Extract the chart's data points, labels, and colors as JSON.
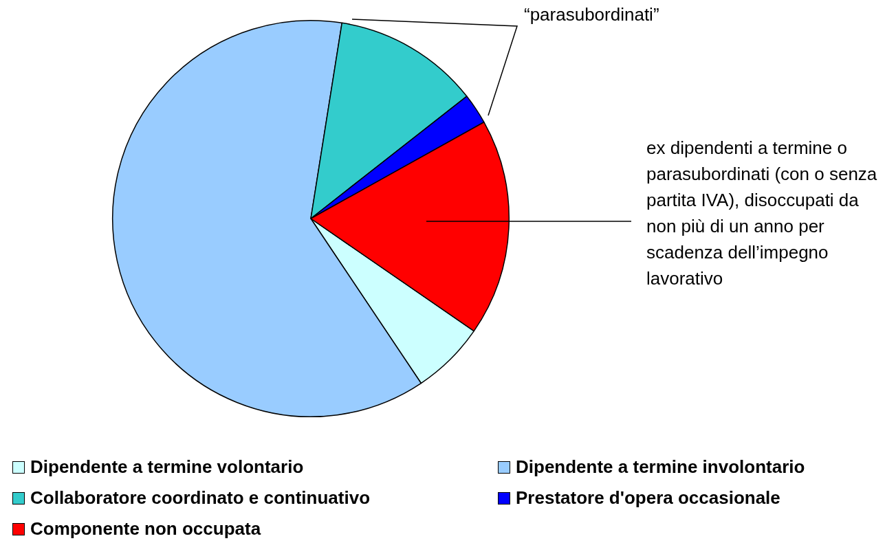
{
  "chart_data": {
    "type": "pie",
    "categories": [
      "Dipendente a termine volontario",
      "Dipendente a termine involontario",
      "Collaboratore coordinato e continuativo",
      "Prestatore d'opera occasionale",
      "Componente non occupata"
    ],
    "values": [
      6.0,
      61.9,
      11.9,
      2.5,
      17.7
    ],
    "colors": [
      "#ccffff",
      "#99ccff",
      "#33cccc",
      "#0000ff",
      "#ff0000"
    ],
    "legend": "bottom",
    "annotations": [
      "“parasubordinati”",
      "ex dipendenti a termine o parasubordinati (con o senza partita IVA), disoccupati da non più di un anno per scadenza dell’impegno lavorativo"
    ]
  }
}
